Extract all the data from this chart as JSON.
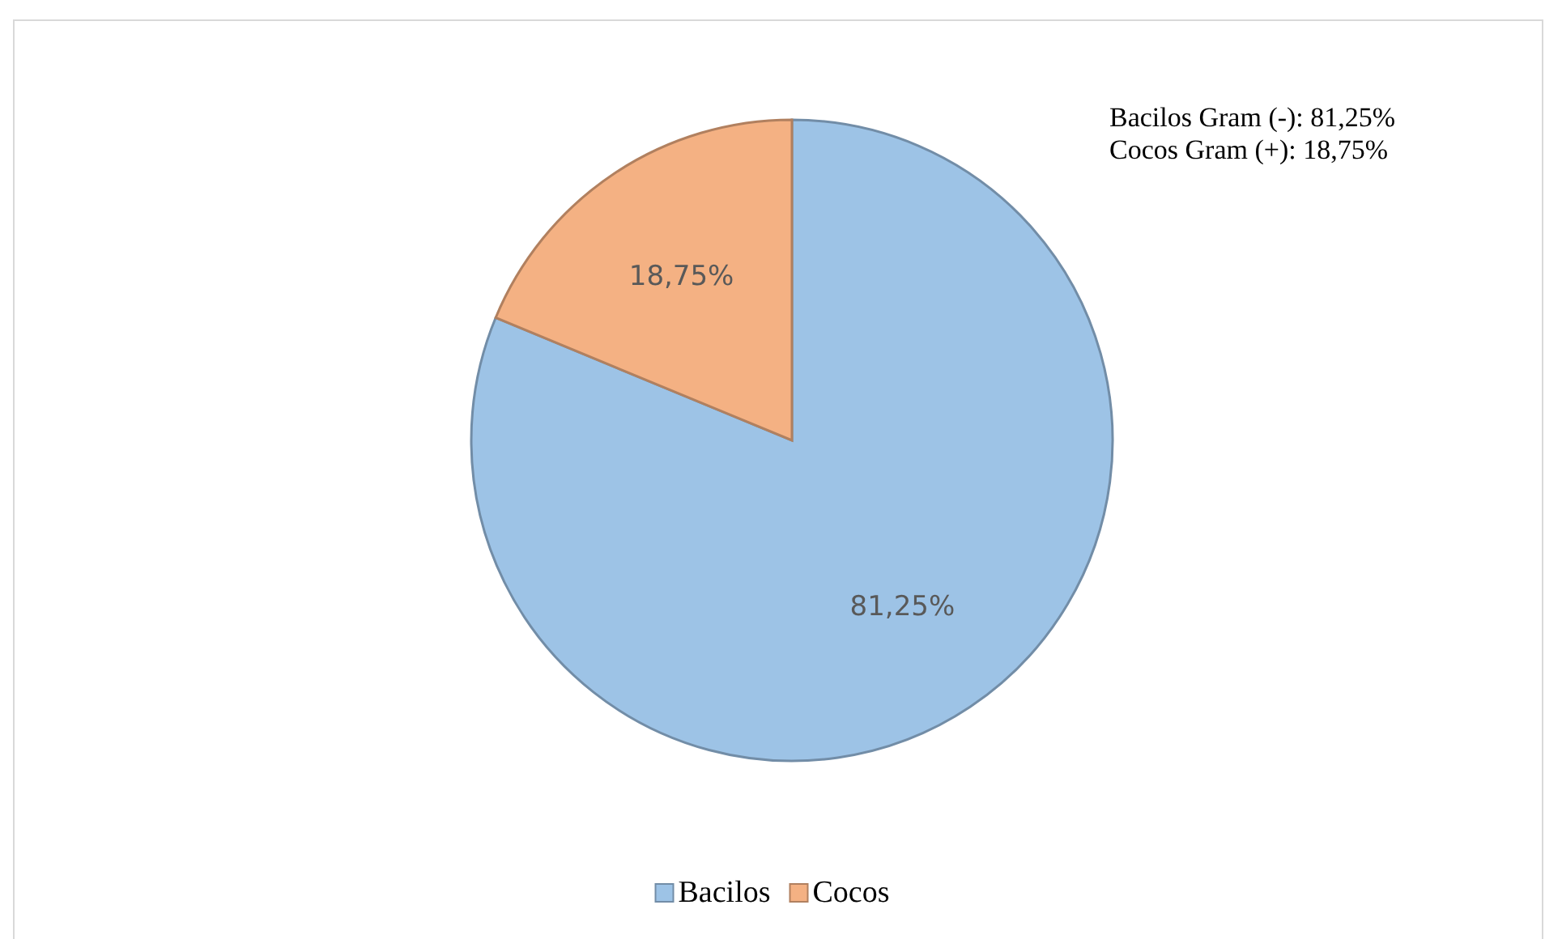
{
  "chart_data": {
    "type": "pie",
    "categories": [
      "Bacilos",
      "Cocos"
    ],
    "values": [
      81.25,
      18.75
    ],
    "colors": [
      "#9dc3e6",
      "#f4b183"
    ],
    "value_labels": [
      "81,25%",
      "18,75%"
    ],
    "annotations": [
      "Bacilos Gram (-): 81,25%",
      "Cocos Gram (+): 18,75%"
    ],
    "legend": "bottom"
  }
}
